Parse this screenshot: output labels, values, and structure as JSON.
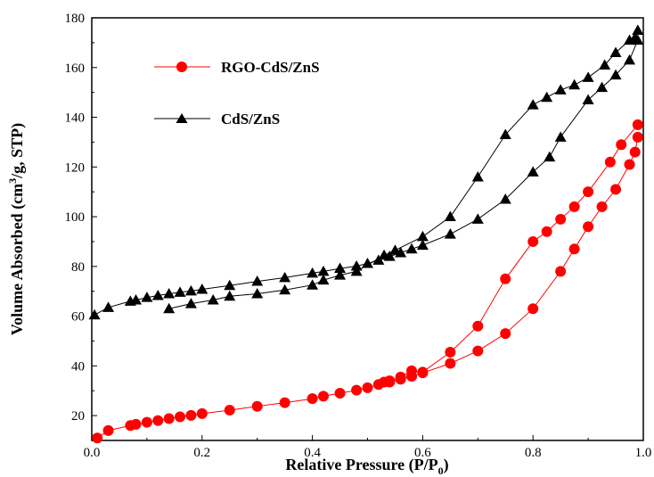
{
  "chart_data": {
    "type": "line",
    "xlabel_main": "Relative Pressure (P/P",
    "xlabel_sub": "0",
    "xlabel_end": ")",
    "ylabel_main": "Volume Absorbed (cm",
    "ylabel_sup": "3",
    "ylabel_end": "/g, STP)",
    "xlim": [
      0.0,
      1.0
    ],
    "ylim": [
      10,
      180
    ],
    "xticks": [
      0.0,
      0.2,
      0.4,
      0.6,
      0.8,
      1.0
    ],
    "xtick_labels": [
      "0.0",
      "0.2",
      "0.4",
      "0.6",
      "0.8",
      "1.0"
    ],
    "yticks": [
      20,
      40,
      60,
      80,
      100,
      120,
      140,
      160,
      180
    ],
    "ytick_labels": [
      "20",
      "40",
      "60",
      "80",
      "100",
      "120",
      "140",
      "160",
      "180"
    ],
    "grid": false,
    "legend_position": "top-left",
    "series": [
      {
        "name": "RGO-CdS/ZnS",
        "color": "#ff0000",
        "marker": "circle",
        "adsorption": {
          "x": [
            0.01,
            0.03,
            0.07,
            0.08,
            0.1,
            0.12,
            0.14,
            0.16,
            0.18,
            0.2,
            0.25,
            0.3,
            0.35,
            0.4,
            0.42,
            0.45,
            0.48,
            0.5,
            0.52,
            0.54,
            0.56,
            0.58,
            0.6,
            0.65,
            0.7,
            0.75,
            0.8,
            0.85,
            0.875,
            0.9,
            0.925,
            0.95,
            0.975,
            0.985,
            0.99
          ],
          "y": [
            11,
            14,
            16,
            16.5,
            17.3,
            18,
            18.8,
            19.5,
            20.1,
            20.8,
            22.2,
            23.7,
            25.2,
            26.8,
            27.8,
            29,
            30.2,
            31.2,
            32.5,
            33.5,
            34.6,
            35.8,
            37.2,
            41,
            46,
            53,
            63,
            78,
            87,
            96,
            104,
            111,
            121,
            126,
            132
          ]
        },
        "desorption": {
          "x": [
            0.99,
            0.96,
            0.94,
            0.9,
            0.875,
            0.85,
            0.825,
            0.8,
            0.75,
            0.7,
            0.65,
            0.6,
            0.58,
            0.56,
            0.54,
            0.53
          ],
          "y": [
            137,
            129,
            122,
            110,
            104,
            99,
            94,
            90,
            75,
            56,
            45.5,
            37.5,
            38,
            35.5,
            34,
            33.5
          ]
        }
      },
      {
        "name": "CdS/ZnS",
        "color": "#000000",
        "marker": "triangle",
        "adsorption": {
          "x": [
            0.005,
            0.03,
            0.07,
            0.08,
            0.1,
            0.12,
            0.14,
            0.16,
            0.18,
            0.2,
            0.25,
            0.3,
            0.35,
            0.4,
            0.42,
            0.45,
            0.48,
            0.5,
            0.52,
            0.54,
            0.56,
            0.58,
            0.6,
            0.65,
            0.7,
            0.75,
            0.8,
            0.83,
            0.85,
            0.9,
            0.925,
            0.95,
            0.975,
            0.99
          ],
          "y": [
            60.5,
            63.5,
            66,
            66.5,
            67.5,
            68.3,
            69,
            69.6,
            70.1,
            70.8,
            72.3,
            74,
            75.5,
            77.3,
            78,
            79.2,
            80.1,
            81.2,
            82.5,
            84,
            85.5,
            87,
            88.5,
            93,
            99,
            107,
            118,
            124,
            132,
            147,
            152,
            157,
            163,
            171
          ]
        },
        "desorption": {
          "x": [
            0.99,
            0.985,
            0.975,
            0.95,
            0.93,
            0.9,
            0.875,
            0.85,
            0.825,
            0.8,
            0.75,
            0.7,
            0.65,
            0.6,
            0.55,
            0.53,
            0.48,
            0.45,
            0.42,
            0.4,
            0.35,
            0.3,
            0.25,
            0.22,
            0.18,
            0.14
          ],
          "y": [
            175,
            172,
            171,
            166,
            161,
            156,
            153,
            151,
            148,
            145,
            133,
            116,
            100,
            92,
            86.5,
            84.5,
            78,
            76.5,
            74.5,
            72.5,
            70.5,
            69,
            68,
            66.5,
            65,
            63
          ]
        }
      }
    ]
  }
}
